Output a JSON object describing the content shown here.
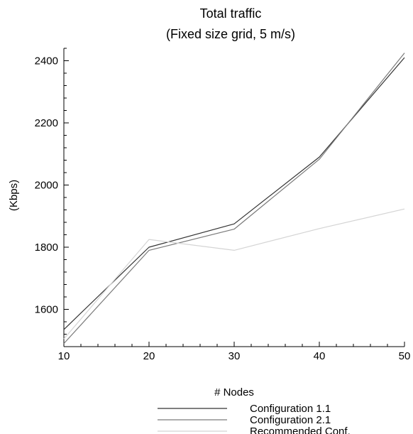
{
  "chart_data": {
    "type": "line",
    "title": "Total traffic",
    "subtitle": "(Fixed size grid, 5 m/s)",
    "xlabel": "# Nodes",
    "ylabel": "(Kbps)",
    "x": [
      10,
      20,
      30,
      40,
      50
    ],
    "xticks": [
      "10",
      "20",
      "30",
      "40",
      "50"
    ],
    "yticks": [
      "1600",
      "1800",
      "2000",
      "2200",
      "2400"
    ],
    "xlim": [
      10,
      50
    ],
    "ylim": [
      1480,
      2440
    ],
    "grid": false,
    "legend_position": "bottom",
    "series": [
      {
        "name": "Configuration 1.1",
        "color": "#333333",
        "values": [
          1535,
          1800,
          1875,
          2090,
          2410
        ]
      },
      {
        "name": "Configuration 2.1",
        "color": "#7a7a7a",
        "values": [
          1490,
          1790,
          1858,
          2083,
          2425
        ]
      },
      {
        "name": "Recommended Conf.",
        "color": "#d4d4d4",
        "values": [
          1505,
          1825,
          1790,
          1860,
          1923
        ]
      }
    ]
  }
}
